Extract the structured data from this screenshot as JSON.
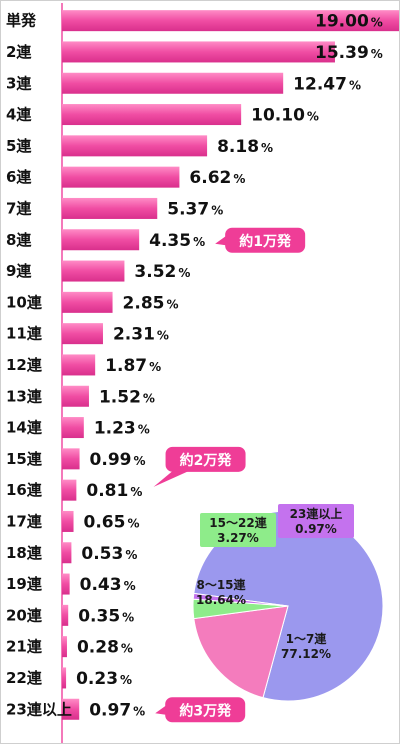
{
  "chart_data": [
    {
      "type": "bar",
      "orientation": "horizontal",
      "categories": [
        "単発",
        "2連",
        "3連",
        "4連",
        "5連",
        "6連",
        "7連",
        "8連",
        "9連",
        "10連",
        "11連",
        "12連",
        "13連",
        "14連",
        "15連",
        "16連",
        "17連",
        "18連",
        "19連",
        "20連",
        "21連",
        "22連",
        "23連以上"
      ],
      "values": [
        19.0,
        15.39,
        12.47,
        10.1,
        8.18,
        6.62,
        5.37,
        4.35,
        3.52,
        2.85,
        2.31,
        1.87,
        1.52,
        1.23,
        0.99,
        0.81,
        0.65,
        0.53,
        0.43,
        0.35,
        0.28,
        0.23,
        0.97
      ],
      "value_labels": [
        "19.00",
        "15.39",
        "12.47",
        "10.10",
        "8.18",
        "6.62",
        "5.37",
        "4.35",
        "3.52",
        "2.85",
        "2.31",
        "1.87",
        "1.52",
        "1.23",
        "0.99",
        "0.81",
        "0.65",
        "0.53",
        "0.43",
        "0.35",
        "0.28",
        "0.23",
        "0.97"
      ],
      "unit": "%",
      "xlim": [
        0,
        19.0
      ],
      "grid": false,
      "bar_color": "#f04da3",
      "callouts": [
        {
          "label": "約1万発",
          "category_index": 7
        },
        {
          "label": "約2万発",
          "category_index": 14
        },
        {
          "label": "約3万発",
          "category_index": 22
        }
      ],
      "callout_color": "#ef3d97"
    },
    {
      "type": "pie",
      "slices": [
        {
          "label": "1〜7連",
          "value": 77.12,
          "value_label": "77.12%",
          "color": "#9b98ee"
        },
        {
          "label": "8〜15連",
          "value": 18.64,
          "value_label": "18.64%",
          "color": "#f47cbd"
        },
        {
          "label": "15〜22連",
          "value": 3.27,
          "value_label": "3.27%",
          "color": "#8eec8a"
        },
        {
          "label": "23連以上",
          "value": 0.97,
          "value_label": "0.97%",
          "color": "#c472ee"
        }
      ]
    }
  ]
}
